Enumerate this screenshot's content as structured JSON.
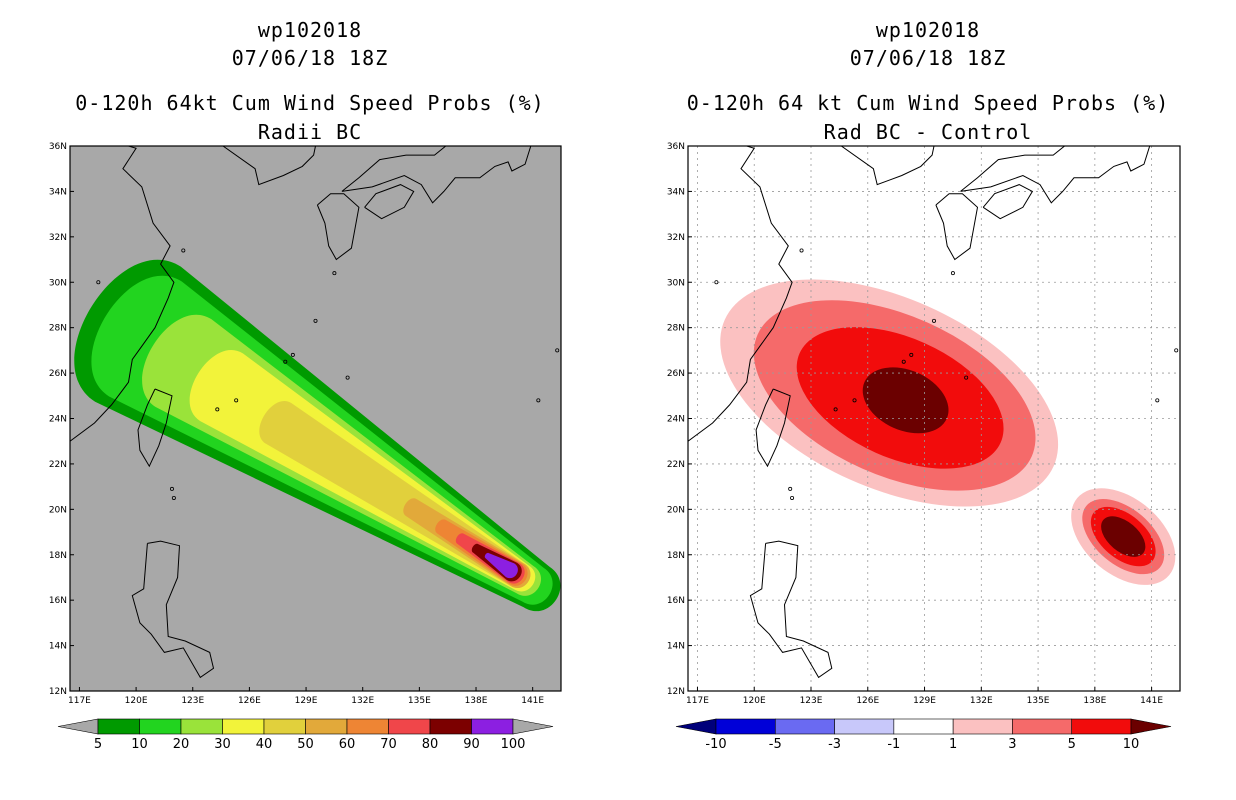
{
  "chart_data": [
    {
      "type": "heatmap",
      "title_lines": [
        "wp102018",
        "07/06/18 18Z",
        "0-120h 64kt Cum Wind Speed Probs (%)",
        "Radii BC"
      ],
      "x_ticks": [
        "117E",
        "120E",
        "123E",
        "126E",
        "129E",
        "132E",
        "135E",
        "138E",
        "141E"
      ],
      "y_ticks": [
        "36N",
        "34N",
        "32N",
        "30N",
        "28N",
        "26N",
        "24N",
        "22N",
        "20N",
        "18N",
        "16N",
        "14N",
        "12N"
      ],
      "xlim": [
        116.5,
        142.5
      ],
      "ylim": [
        12,
        36
      ],
      "grid": false,
      "background": "#a8a8a8",
      "track": {
        "start": [
          120.5,
          27.5
        ],
        "end": [
          140.6,
          16.9
        ]
      },
      "contour_levels": [
        5,
        10,
        20,
        30,
        40,
        50,
        60,
        70,
        80,
        90,
        100
      ],
      "colorbar": {
        "labels": [
          "5",
          "10",
          "20",
          "30",
          "40",
          "50",
          "60",
          "70",
          "80",
          "90",
          "100"
        ],
        "colors": [
          "#009a00",
          "#22d41f",
          "#9ae33a",
          "#f2f33a",
          "#e1d03c",
          "#e2a93a",
          "#ee8534",
          "#f0464a",
          "#7c0000",
          "#8c1fe1"
        ],
        "under_color": "#a8a8a8",
        "over_color": "#a8a8a8"
      }
    },
    {
      "type": "heatmap",
      "title_lines": [
        "wp102018",
        "07/06/18 18Z",
        "0-120h 64 kt Cum Wind Speed Probs (%)",
        "Rad BC - Control"
      ],
      "x_ticks": [
        "117E",
        "120E",
        "123E",
        "126E",
        "129E",
        "132E",
        "135E",
        "138E",
        "141E"
      ],
      "y_ticks": [
        "36N",
        "34N",
        "32N",
        "30N",
        "28N",
        "26N",
        "24N",
        "22N",
        "20N",
        "18N",
        "16N",
        "14N",
        "12N"
      ],
      "xlim": [
        116.5,
        142.5
      ],
      "ylim": [
        12,
        36
      ],
      "grid": true,
      "background": "#ffffff",
      "blobs": [
        {
          "center": [
            128.0,
            24.8
          ],
          "levels": [
            1,
            3,
            5,
            10
          ]
        },
        {
          "center": [
            139.5,
            18.8
          ],
          "levels": [
            1,
            3,
            5,
            10
          ]
        }
      ],
      "colorbar": {
        "labels": [
          "-10",
          "-5",
          "-3",
          "-1",
          "1",
          "3",
          "5",
          "10"
        ],
        "colors": [
          "#0000d8",
          "#6a6af2",
          "#c8c8fa",
          "#ffffff",
          "#fbc1c1",
          "#f56a6a",
          "#f20c0c"
        ],
        "under_color": "#00007a",
        "over_color": "#6b0000"
      }
    }
  ]
}
